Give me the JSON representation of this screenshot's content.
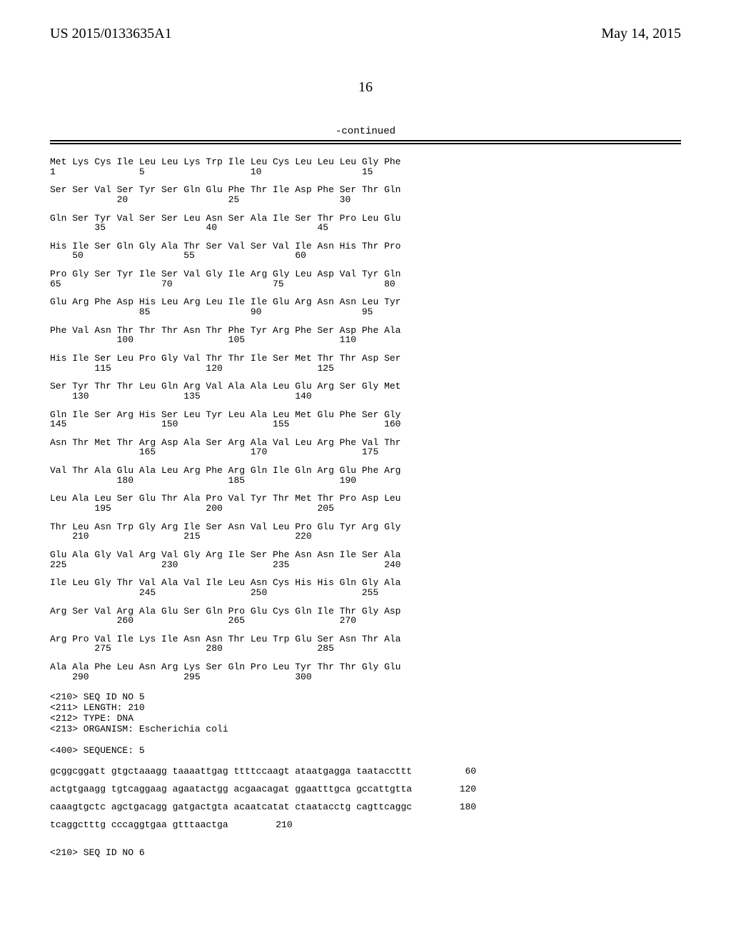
{
  "header": {
    "left": "US 2015/0133635A1",
    "right": "May 14, 2015"
  },
  "page_number": "16",
  "continued_label": "-continued",
  "sequence_rows": [
    {
      "aa": "Met Lys Cys Ile Leu Leu Lys Trp Ile Leu Cys Leu Leu Leu Gly Phe",
      "nums": "1               5                   10                  15"
    },
    {
      "aa": "Ser Ser Val Ser Tyr Ser Gln Glu Phe Thr Ile Asp Phe Ser Thr Gln",
      "nums": "            20                  25                  30"
    },
    {
      "aa": "Gln Ser Tyr Val Ser Ser Leu Asn Ser Ala Ile Ser Thr Pro Leu Glu",
      "nums": "        35                  40                  45"
    },
    {
      "aa": "His Ile Ser Gln Gly Ala Thr Ser Val Ser Val Ile Asn His Thr Pro",
      "nums": "    50                  55                  60"
    },
    {
      "aa": "Pro Gly Ser Tyr Ile Ser Val Gly Ile Arg Gly Leu Asp Val Tyr Gln",
      "nums": "65                  70                  75                  80"
    },
    {
      "aa": "Glu Arg Phe Asp His Leu Arg Leu Ile Ile Glu Arg Asn Asn Leu Tyr",
      "nums": "                85                  90                  95"
    },
    {
      "aa": "Phe Val Asn Thr Thr Thr Asn Thr Phe Tyr Arg Phe Ser Asp Phe Ala",
      "nums": "            100                 105                 110"
    },
    {
      "aa": "His Ile Ser Leu Pro Gly Val Thr Thr Ile Ser Met Thr Thr Asp Ser",
      "nums": "        115                 120                 125"
    },
    {
      "aa": "Ser Tyr Thr Thr Leu Gln Arg Val Ala Ala Leu Glu Arg Ser Gly Met",
      "nums": "    130                 135                 140"
    },
    {
      "aa": "Gln Ile Ser Arg His Ser Leu Tyr Leu Ala Leu Met Glu Phe Ser Gly",
      "nums": "145                 150                 155                 160"
    },
    {
      "aa": "Asn Thr Met Thr Arg Asp Ala Ser Arg Ala Val Leu Arg Phe Val Thr",
      "nums": "                165                 170                 175"
    },
    {
      "aa": "Val Thr Ala Glu Ala Leu Arg Phe Arg Gln Ile Gln Arg Glu Phe Arg",
      "nums": "            180                 185                 190"
    },
    {
      "aa": "Leu Ala Leu Ser Glu Thr Ala Pro Val Tyr Thr Met Thr Pro Asp Leu",
      "nums": "        195                 200                 205"
    },
    {
      "aa": "Thr Leu Asn Trp Gly Arg Ile Ser Asn Val Leu Pro Glu Tyr Arg Gly",
      "nums": "    210                 215                 220"
    },
    {
      "aa": "Glu Ala Gly Val Arg Val Gly Arg Ile Ser Phe Asn Asn Ile Ser Ala",
      "nums": "225                 230                 235                 240"
    },
    {
      "aa": "Ile Leu Gly Thr Val Ala Val Ile Leu Asn Cys His His Gln Gly Ala",
      "nums": "                245                 250                 255"
    },
    {
      "aa": "Arg Ser Val Arg Ala Glu Ser Gln Pro Glu Cys Gln Ile Thr Gly Asp",
      "nums": "            260                 265                 270"
    },
    {
      "aa": "Arg Pro Val Ile Lys Ile Asn Asn Thr Leu Trp Glu Ser Asn Thr Ala",
      "nums": "        275                 280                 285"
    },
    {
      "aa": "Ala Ala Phe Leu Asn Arg Lys Ser Gln Pro Leu Tyr Thr Thr Gly Glu",
      "nums": "    290                 295                 300"
    }
  ],
  "meta_block": [
    "<210> SEQ ID NO 5",
    "<211> LENGTH: 210",
    "<212> TYPE: DNA",
    "<213> ORGANISM: Escherichia coli",
    "",
    "<400> SEQUENCE: 5"
  ],
  "nucleotide_rows": [
    {
      "seq": "gcggcggatt gtgctaaagg taaaattgag ttttccaagt ataatgagga taataccttt",
      "num": "60"
    },
    {
      "seq": "actgtgaagg tgtcaggaag agaatactgg acgaacagat ggaatttgca gccattgtta",
      "num": "120"
    },
    {
      "seq": "caaagtgctc agctgacagg gatgactgta acaatcatat ctaatacctg cagttcaggc",
      "num": "180"
    },
    {
      "seq": "tcaggctttg cccaggtgaa gtttaactga",
      "num": "210"
    }
  ],
  "tail_meta": "<210> SEQ ID NO 6"
}
